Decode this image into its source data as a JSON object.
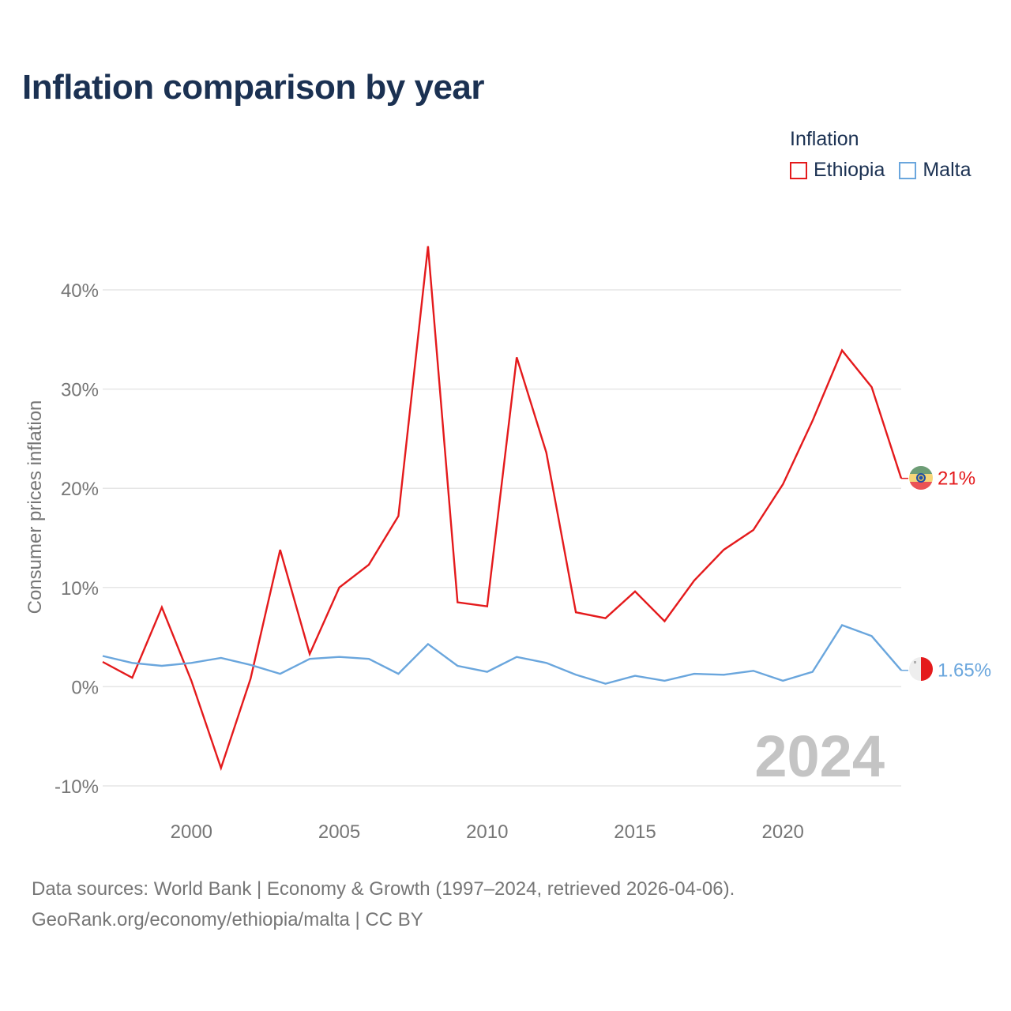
{
  "title": "Inflation comparison by year",
  "legend": {
    "title": "Inflation",
    "items": [
      {
        "label": "Ethiopia",
        "color": "#e41a1c"
      },
      {
        "label": "Malta",
        "color": "#6aa6dd"
      }
    ]
  },
  "chart_data": {
    "type": "line",
    "title": "Inflation comparison by year",
    "xlabel": "",
    "ylabel": "Consumer prices inflation",
    "x": [
      1997,
      1998,
      1999,
      2000,
      2001,
      2002,
      2003,
      2004,
      2005,
      2006,
      2007,
      2008,
      2009,
      2010,
      2011,
      2012,
      2013,
      2014,
      2015,
      2016,
      2017,
      2018,
      2019,
      2020,
      2021,
      2022,
      2023,
      2024
    ],
    "xlim": [
      1997,
      2024
    ],
    "ylim": [
      -10,
      45
    ],
    "x_ticks": [
      2000,
      2005,
      2010,
      2015,
      2020
    ],
    "x_tick_labels": [
      "2000",
      "2005",
      "2010",
      "2015",
      "2020"
    ],
    "y_ticks": [
      -10,
      0,
      10,
      20,
      30,
      40
    ],
    "y_tick_labels": [
      "-10%",
      "0%",
      "10%",
      "20%",
      "30%",
      "40%"
    ],
    "grid": true,
    "year_watermark": "2024",
    "series": [
      {
        "name": "Ethiopia",
        "color": "#e41a1c",
        "end_label": "21%",
        "values": [
          2.5,
          0.9,
          8.0,
          0.6,
          -8.2,
          0.8,
          13.8,
          3.3,
          10.0,
          12.3,
          17.2,
          44.4,
          8.5,
          8.1,
          33.2,
          23.6,
          7.5,
          6.9,
          9.6,
          6.6,
          10.7,
          13.8,
          15.8,
          20.4,
          26.8,
          33.9,
          30.2,
          21.0
        ]
      },
      {
        "name": "Malta",
        "color": "#6aa6dd",
        "end_label": "1.65%",
        "values": [
          3.1,
          2.4,
          2.1,
          2.4,
          2.9,
          2.2,
          1.3,
          2.8,
          3.0,
          2.8,
          1.3,
          4.3,
          2.1,
          1.5,
          3.0,
          2.4,
          1.2,
          0.3,
          1.1,
          0.6,
          1.3,
          1.2,
          1.6,
          0.6,
          1.5,
          6.2,
          5.1,
          1.65
        ]
      }
    ]
  },
  "source": {
    "line1": "Data sources: World Bank | Economy & Growth (1997–2024, retrieved 2026-04-06).",
    "line2": "GeoRank.org/economy/ethiopia/malta | CC BY"
  }
}
